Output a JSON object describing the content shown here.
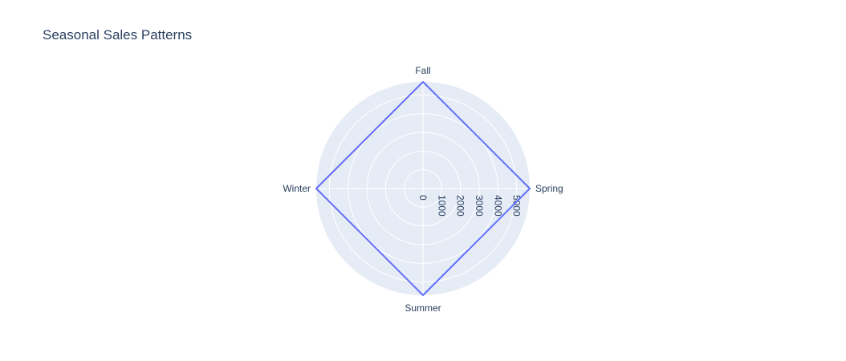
{
  "chart_data": {
    "type": "radar",
    "title": "Seasonal Sales Patterns",
    "theta": [
      "Spring",
      "Fall",
      "Winter",
      "Summer"
    ],
    "r": [
      5700,
      5700,
      5700,
      5700
    ],
    "series": [
      {
        "values": [
          5700,
          5700,
          5700,
          5700
        ]
      }
    ],
    "radial_range": [
      0,
      5700
    ],
    "radial_ticks": [
      0,
      1000,
      2000,
      3000,
      4000,
      5000
    ],
    "colors": {
      "series": "#636efa",
      "polar_bg": "#e5ecf6",
      "grid": "#ffffff",
      "text": "#2a3f5f"
    },
    "grid": true,
    "legend": false
  }
}
